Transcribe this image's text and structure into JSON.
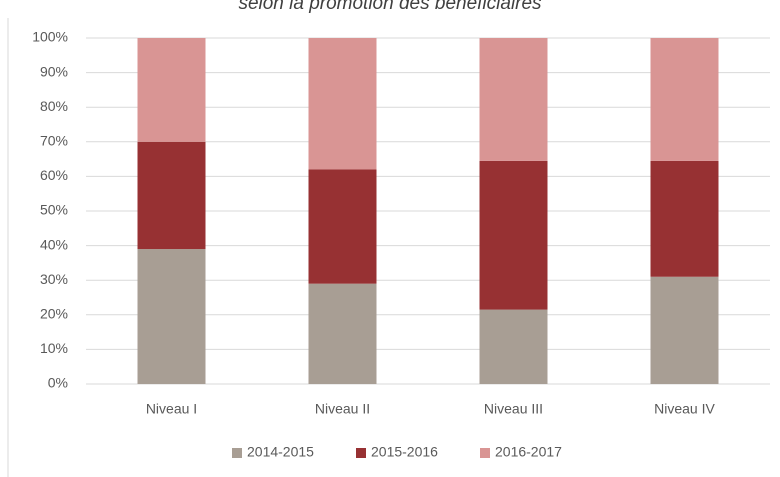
{
  "chart_data": {
    "type": "stacked_bar",
    "title": "selon la promotion des bénéficiaires",
    "categories": [
      "Niveau I",
      "Niveau II",
      "Niveau III",
      "Niveau IV"
    ],
    "series": [
      {
        "name": "2014-2015",
        "color": "#a89e94",
        "values": [
          39,
          29,
          21.5,
          31
        ]
      },
      {
        "name": "2015-2016",
        "color": "#973133",
        "values": [
          31,
          33,
          43,
          33.5
        ]
      },
      {
        "name": "2016-2017",
        "color": "#d99594",
        "values": [
          30,
          38,
          35.5,
          35.5
        ]
      }
    ],
    "ylim": [
      0,
      100
    ],
    "yticks": [
      {
        "value": 0,
        "label": "0%"
      },
      {
        "value": 10,
        "label": "10%"
      },
      {
        "value": 20,
        "label": "20%"
      },
      {
        "value": 30,
        "label": "30%"
      },
      {
        "value": 40,
        "label": "40%"
      },
      {
        "value": 50,
        "label": "50%"
      },
      {
        "value": 60,
        "label": "60%"
      },
      {
        "value": 70,
        "label": "70%"
      },
      {
        "value": 80,
        "label": "80%"
      },
      {
        "value": 90,
        "label": "90%"
      },
      {
        "value": 100,
        "label": "100%"
      }
    ],
    "grid": true,
    "legend": "bottom"
  }
}
